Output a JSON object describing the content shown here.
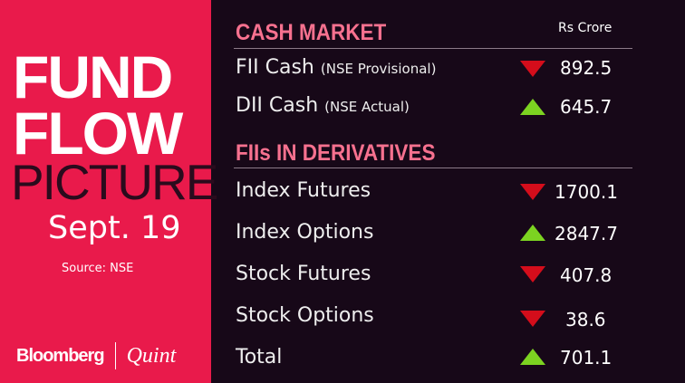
{
  "left": {
    "title_line1": "FUND",
    "title_line2": "FLOW",
    "title_line3": "PICTURE",
    "date": "Sept. 19",
    "source": "Source: NSE",
    "logo_brand": "Bloomberg",
    "logo_partner": "Quint"
  },
  "colors": {
    "panel": "#e91a4b",
    "background": "#170818",
    "heading": "#f7718f",
    "down": "#d40d1b",
    "up": "#7cd321"
  },
  "cash": {
    "heading": "CASH MARKET",
    "unit": "Rs Crore",
    "rows": [
      {
        "label": "FII Cash",
        "sub": "(NSE Provisional)",
        "direction": "down",
        "value": "892.5"
      },
      {
        "label": "DII Cash",
        "sub": "(NSE Actual)",
        "direction": "up",
        "value": "645.7"
      }
    ]
  },
  "derivatives": {
    "heading": "FIIs IN DERIVATIVES",
    "rows": [
      {
        "label": "Index Futures",
        "direction": "down",
        "value": "1700.1"
      },
      {
        "label": "Index Options",
        "direction": "up",
        "value": "2847.7"
      },
      {
        "label": "Stock Futures",
        "direction": "down",
        "value": "407.8"
      },
      {
        "label": "Stock Options",
        "direction": "down",
        "value": "38.6"
      },
      {
        "label": "Total",
        "direction": "up",
        "value": "701.1"
      }
    ]
  }
}
